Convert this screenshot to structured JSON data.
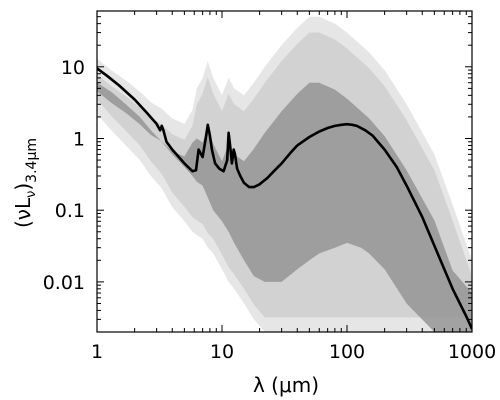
{
  "chart_data": {
    "type": "line",
    "title": "",
    "xlabel": "λ (μm)",
    "ylabel": "(νL_ν)_3.4μm",
    "ylabel_parts": {
      "main": "(νL",
      "nu_sub": "ν",
      "close": ")",
      "sub": "3.4μm"
    },
    "xscale": "log",
    "yscale": "log",
    "xlim": [
      1,
      1000
    ],
    "ylim": [
      0.002,
      60
    ],
    "grid": false,
    "legend": "none",
    "x_ticks": [
      {
        "value": 1,
        "label": "1"
      },
      {
        "value": 10,
        "label": "10"
      },
      {
        "value": 100,
        "label": "100"
      },
      {
        "value": 1000,
        "label": "1000"
      }
    ],
    "y_ticks": [
      {
        "value": 0.01,
        "label": "0.01"
      },
      {
        "value": 0.1,
        "label": "0.1"
      },
      {
        "value": 1,
        "label": "1"
      },
      {
        "value": 10,
        "label": "10"
      }
    ],
    "envelope": {
      "x": [
        1,
        1.3,
        1.7,
        2.2,
        2.7,
        3.3,
        4,
        5,
        5.8,
        6.3,
        7,
        7.7,
        8.5,
        10,
        11.3,
        12.5,
        15,
        18,
        22,
        30,
        40,
        50,
        60,
        80,
        100,
        130,
        150,
        200,
        300,
        500,
        700,
        1000
      ],
      "upper": [
        13,
        9,
        6.5,
        4.5,
        3.2,
        2.6,
        1.9,
        1.6,
        2.5,
        5,
        7,
        12,
        7,
        4,
        7,
        5,
        4,
        6,
        10,
        20,
        35,
        50,
        50,
        40,
        30,
        20,
        16,
        9,
        3,
        0.6,
        0.12,
        0.02
      ],
      "lower": [
        2.2,
        1.3,
        0.8,
        0.5,
        0.3,
        0.2,
        0.11,
        0.07,
        0.05,
        0.045,
        0.04,
        0.03,
        0.025,
        0.015,
        0.01,
        0.008,
        0.005,
        0.003,
        0.002,
        0.002,
        0.002,
        0.002,
        0.002,
        0.002,
        0.002,
        0.002,
        0.002,
        0.002,
        0.002,
        0.002,
        0.002,
        0.002
      ],
      "core_lower": [
        6,
        4.5,
        3,
        2,
        1.3,
        0.9,
        0.6,
        0.4,
        0.3,
        0.25,
        0.22,
        0.15,
        0.1,
        0.07,
        0.05,
        0.035,
        0.02,
        0.012,
        0.01,
        0.01,
        0.015,
        0.02,
        0.025,
        0.03,
        0.035,
        0.03,
        0.025,
        0.015,
        0.005,
        0.002,
        0.002,
        0.002
      ],
      "colors": {
        "light": "#d2d2d2",
        "core": "#959595",
        "faint": "#e6e6e6"
      }
    },
    "series": [
      {
        "color": "#000000",
        "x": [
          1,
          1.2,
          1.5,
          2,
          2.5,
          3,
          3.2,
          3.3,
          3.4,
          3.6,
          4,
          5,
          5.8,
          6.2,
          6.5,
          7,
          7.4,
          7.7,
          8,
          8.3,
          8.8,
          9.5,
          10.3,
          11,
          11.3,
          11.6,
          12,
          12.4,
          12.7,
          13.2,
          14,
          15,
          16.5,
          18,
          20,
          23,
          26,
          30,
          35,
          40,
          50,
          60,
          70,
          80,
          90,
          100,
          110,
          120,
          140,
          160,
          200,
          250,
          300,
          400,
          500,
          600,
          700,
          800,
          900,
          1000
        ],
        "y": [
          9.5,
          7.5,
          5.5,
          3.5,
          2.3,
          1.6,
          1.3,
          1.5,
          1.3,
          0.9,
          0.7,
          0.45,
          0.35,
          0.36,
          0.7,
          0.55,
          1.0,
          1.55,
          1.1,
          0.7,
          0.45,
          0.38,
          0.35,
          0.5,
          1.2,
          0.8,
          0.45,
          0.7,
          0.6,
          0.38,
          0.3,
          0.24,
          0.21,
          0.21,
          0.23,
          0.28,
          0.35,
          0.45,
          0.62,
          0.8,
          1.05,
          1.25,
          1.4,
          1.5,
          1.55,
          1.58,
          1.55,
          1.5,
          1.3,
          1.1,
          0.7,
          0.4,
          0.22,
          0.08,
          0.032,
          0.015,
          0.008,
          0.005,
          0.0033,
          0.0022
        ]
      }
    ]
  }
}
